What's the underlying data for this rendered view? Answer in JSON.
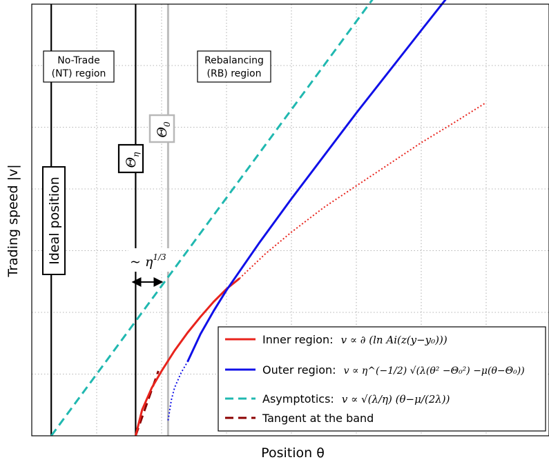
{
  "chart_data": {
    "type": "line",
    "xlabel": "Position θ",
    "ylabel": "Trading speed |v|",
    "xlim": [
      0,
      10
    ],
    "ylim": [
      0,
      10
    ],
    "grid": true,
    "legend_position": "bottom-right",
    "vertical_lines": [
      {
        "name": "Ideal position",
        "x": 0.3,
        "color": "#000000"
      },
      {
        "name": "Θη",
        "x": 1.6,
        "color": "#000000"
      },
      {
        "name": "Θ0",
        "x": 2.1,
        "color": "#b0b0b0"
      }
    ],
    "regions": [
      {
        "name": "No-Trade (NT) region",
        "lines": [
          "No-Trade",
          "(NT) region"
        ]
      },
      {
        "name": "Rebalancing (RB) region",
        "lines": [
          "Rebalancing",
          "(RB) region"
        ]
      }
    ],
    "annotations": [
      {
        "text": "Ideal position"
      },
      {
        "text": "Θ",
        "subscript": "η"
      },
      {
        "text": "Θ",
        "subscript": "0"
      },
      {
        "text": "~ η",
        "superscript": "1/3"
      }
    ],
    "series": [
      {
        "name": "Inner region",
        "color": "#e8231c",
        "style": "solid",
        "x": [
          1.6,
          1.7,
          1.85,
          2.0,
          2.2,
          2.4,
          2.6,
          2.8,
          3.0,
          3.2
        ],
        "y": [
          0.0,
          0.42,
          0.78,
          1.05,
          1.38,
          1.67,
          1.93,
          2.17,
          2.38,
          2.55
        ]
      },
      {
        "name": "Inner region (extension)",
        "color": "#e8231c",
        "style": "dotted",
        "x": [
          3.2,
          3.6,
          4.0,
          4.5,
          5.0,
          5.5,
          6.0,
          6.5,
          7.0
        ],
        "y": [
          2.55,
          2.95,
          3.3,
          3.7,
          4.05,
          4.4,
          4.75,
          5.07,
          5.4
        ]
      },
      {
        "name": "Outer region",
        "color": "#1010e8",
        "style": "solid",
        "x": [
          2.4,
          2.6,
          2.8,
          3.0,
          3.5,
          4.0,
          5.0,
          6.0,
          7.0,
          7.5
        ],
        "y": [
          1.2,
          1.65,
          2.02,
          2.36,
          3.12,
          3.84,
          5.23,
          6.57,
          7.9,
          8.55
        ]
      },
      {
        "name": "Outer region (extension)",
        "color": "#1010e8",
        "style": "dotted",
        "x": [
          2.1,
          2.15,
          2.2,
          2.3,
          2.4
        ],
        "y": [
          0.25,
          0.58,
          0.78,
          1.02,
          1.2
        ]
      },
      {
        "name": "Asymptotics",
        "color": "#20b8b0",
        "style": "dashed",
        "x": [
          0.3,
          7.3
        ],
        "y": [
          0.0,
          10.0
        ]
      },
      {
        "name": "Tangent at the band",
        "color": "#8b0000",
        "style": "dashed",
        "x": [
          1.6,
          1.95
        ],
        "y": [
          0.0,
          1.05
        ]
      }
    ],
    "legend": [
      {
        "series": "Inner region",
        "text": "Inner region:",
        "formula": "v ∝ ∂ (ln Ai(z(y−y₀)))"
      },
      {
        "series": "Outer region",
        "text": "Outer region:",
        "formula": "v ∝ η^(−1/2) √(λ(θ² −Θ₀²) −μ(θ−Θ₀))"
      },
      {
        "series": "Asymptotics",
        "text": "Asymptotics:",
        "formula": "v ∝ √(λ/η) (θ−μ/(2λ))"
      },
      {
        "series": "Tangent at the band",
        "text": "Tangent at the band",
        "formula": ""
      }
    ]
  }
}
